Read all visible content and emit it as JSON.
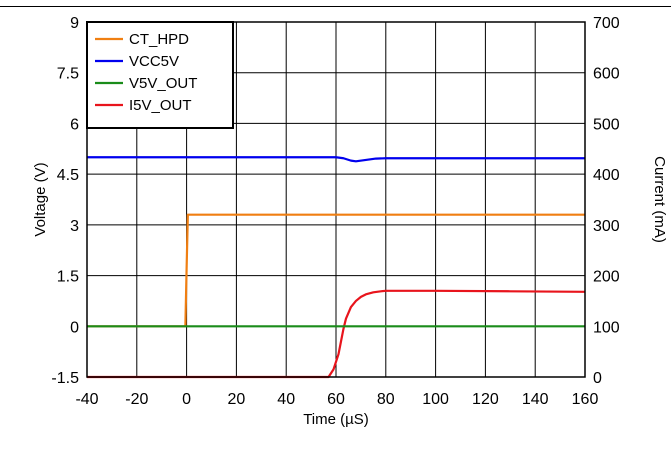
{
  "chart_data": {
    "type": "line",
    "title": "",
    "xlabel": "Time (µS)",
    "ylabel_left": "Voltage (V)",
    "ylabel_right": "Current (mA)",
    "xlim": [
      -40,
      160
    ],
    "ylim_left": [
      -1.5,
      9
    ],
    "ylim_right": [
      0,
      700
    ],
    "x_ticks": [
      "-40",
      "-20",
      "0",
      "20",
      "40",
      "60",
      "80",
      "100",
      "120",
      "140",
      "160"
    ],
    "y_left_ticks": [
      "-1.5",
      "0",
      "1.5",
      "3",
      "4.5",
      "6",
      "7.5",
      "9"
    ],
    "y_right_ticks": [
      "0",
      "100",
      "200",
      "300",
      "400",
      "500",
      "600",
      "700"
    ],
    "grid": true,
    "legend_position": "top-left",
    "series": [
      {
        "name": "CT_HPD",
        "color": "#f07f12",
        "axis": "left",
        "x": [
          -40,
          -0.5,
          0,
          0.5,
          160
        ],
        "y": [
          0,
          0,
          1.7,
          3.3,
          3.3
        ]
      },
      {
        "name": "VCC5V",
        "color": "#0000ee",
        "axis": "left",
        "x": [
          -40,
          60,
          63,
          66,
          68,
          72,
          76,
          80,
          160
        ],
        "y": [
          5.0,
          5.0,
          4.97,
          4.9,
          4.88,
          4.92,
          4.96,
          4.97,
          4.97
        ]
      },
      {
        "name": "V5V_OUT",
        "color": "#1a8c1a",
        "axis": "left",
        "x": [
          -40,
          160
        ],
        "y": [
          0,
          0
        ]
      },
      {
        "name": "I5V_OUT",
        "color": "#e8141c",
        "axis": "right",
        "x": [
          -40,
          57,
          59,
          61,
          62,
          63,
          64,
          66,
          68,
          70,
          72,
          75,
          78,
          80,
          100,
          130,
          160
        ],
        "y": [
          0,
          0,
          15,
          45,
          70,
          95,
          115,
          138,
          150,
          158,
          163,
          167,
          169,
          170,
          170,
          169,
          168
        ]
      }
    ]
  }
}
